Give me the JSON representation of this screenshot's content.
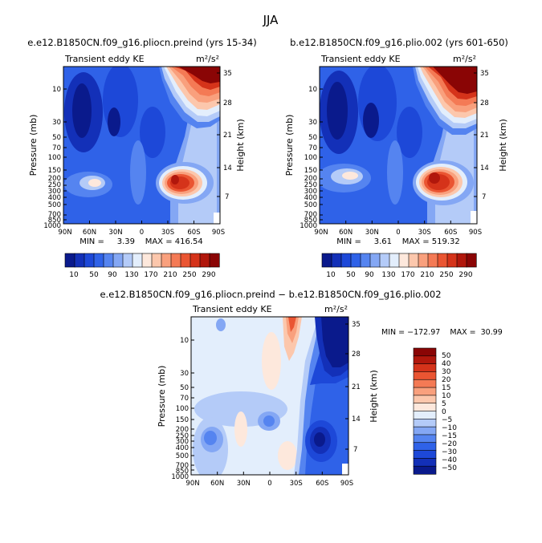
{
  "season": "JJA",
  "colors": {
    "scale_top": [
      "#0a1a8c",
      "#1330b8",
      "#1d48d8",
      "#2f62e8",
      "#5584f0",
      "#84a7f4",
      "#b4cbf8",
      "#e3eefc",
      "#fde8dc",
      "#fcc7ac",
      "#f9a07d",
      "#f47a55",
      "#ea5532",
      "#d5331a",
      "#b1170c",
      "#8a0505"
    ],
    "scale_diff": [
      "#8a0505",
      "#b1170c",
      "#d5331a",
      "#ea5532",
      "#f47a55",
      "#f9a07d",
      "#fcc7ac",
      "#fde8dc",
      "#e3eefc",
      "#b4cbf8",
      "#84a7f4",
      "#5584f0",
      "#2f62e8",
      "#1d48d8",
      "#1330b8",
      "#0a1a8c"
    ]
  },
  "chart_data": [
    {
      "type": "contour",
      "title": "e.e12.B1850CN.f09_g16.pliocn.preind (yrs 15-34)",
      "left_subtitle": "Transient eddy KE",
      "units": "m²/s²",
      "xlabel": "",
      "ylabel": "Pressure (mb)",
      "right_ylabel": "Height (km)",
      "x_ticks": [
        "90N",
        "60N",
        "30N",
        "0",
        "30S",
        "60S",
        "90S"
      ],
      "p_ticks": [
        "10",
        "30",
        "50",
        "70",
        "100",
        "150",
        "200",
        "250",
        "300",
        "400",
        "500",
        "700",
        "850",
        "1000"
      ],
      "height_ticks": [
        "35",
        "28",
        "21",
        "14",
        "7"
      ],
      "min_label": "MIN =",
      "min": 3.39,
      "max_label": "MAX =",
      "max": 416.54,
      "stats_text": "MIN =     3.39    MAX = 416.54"
    },
    {
      "type": "contour",
      "title": "b.e12.B1850CN.f09_g16.plio.002 (yrs 601-650)",
      "left_subtitle": "Transient eddy KE",
      "units": "m²/s²",
      "ylabel": "Pressure (mb)",
      "right_ylabel": "Height (km)",
      "x_ticks": [
        "90N",
        "60N",
        "30N",
        "0",
        "30S",
        "60S",
        "90S"
      ],
      "p_ticks": [
        "10",
        "30",
        "50",
        "70",
        "100",
        "150",
        "200",
        "250",
        "300",
        "400",
        "500",
        "700",
        "850",
        "1000"
      ],
      "height_ticks": [
        "35",
        "28",
        "21",
        "14",
        "7"
      ],
      "min": 3.61,
      "max": 519.32,
      "stats_text": "MIN =     3.61    MAX = 519.32"
    },
    {
      "type": "contour",
      "title": "e.e12.B1850CN.f09_g16.pliocn.preind − b.e12.B1850CN.f09_g16.plio.002",
      "left_subtitle": "Transient eddy KE",
      "units": "m²/s²",
      "ylabel": "Pressure (mb)",
      "right_ylabel": "Height (km)",
      "x_ticks": [
        "90N",
        "60N",
        "30N",
        "0",
        "30S",
        "60S",
        "90S"
      ],
      "p_ticks": [
        "10",
        "30",
        "50",
        "70",
        "100",
        "150",
        "200",
        "250",
        "300",
        "400",
        "500",
        "700",
        "850",
        "1000"
      ],
      "height_ticks": [
        "35",
        "28",
        "21",
        "14",
        "7"
      ],
      "min": -172.97,
      "max": 30.99,
      "stats_text": "MIN = −172.97    MAX =  30.99"
    }
  ],
  "colorbar_top": {
    "labels": [
      "10",
      "50",
      "90",
      "130",
      "170",
      "210",
      "250",
      "290"
    ]
  },
  "colorbar_diff": {
    "labels": [
      "50",
      "40",
      "30",
      "20",
      "15",
      "10",
      "5",
      "0",
      "−5",
      "−10",
      "−15",
      "−20",
      "−30",
      "−40",
      "−50"
    ]
  }
}
